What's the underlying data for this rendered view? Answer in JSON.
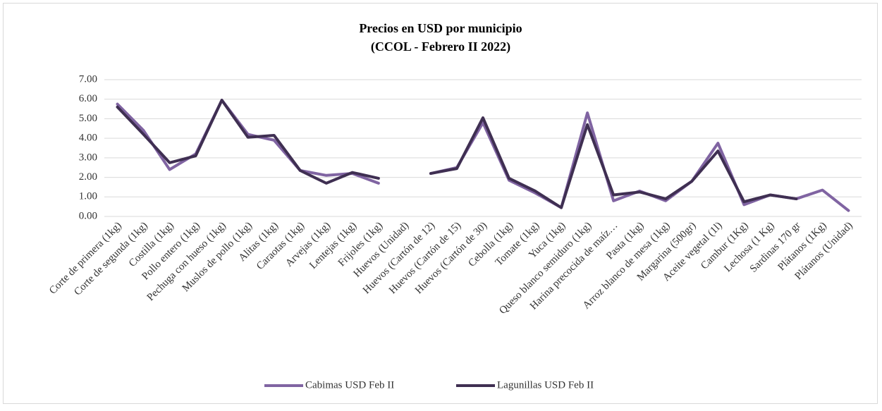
{
  "chart_data": {
    "type": "line",
    "title": "Precios en USD por municipio",
    "subtitle": "(CCOL - Febrero II 2022)",
    "categories": [
      "Corte de primera (1kg)",
      "Corte de segunda (1kg)",
      "Costilla (1kg)",
      "Pollo entero (1kg)",
      "Pechuga con hueso (1kg)",
      "Muslos de pollo (1kg)",
      "Alitas (1kg)",
      "Caraotas (1kg)",
      "Arvejas (1kg)",
      "Lentejas (1kg)",
      "Frijoles (1kg)",
      "Huevos (Unidad)",
      "Huevos (Cartón de 12)",
      "Huevos (Cartón de 15)",
      "Huevos (Cartón de 30)",
      "Cebolla (1kg)",
      "Tomate (1kg)",
      "Yuca (1kg)",
      "Queso blanco semiduro (1kg)",
      "Harina precocida de maíz…",
      "Pasta (1kg)",
      "Arroz blanco de mesa (1kg)",
      "Margarina (500gr)",
      "Aceite vegetal (1l)",
      "Cambur (1Kg)",
      "Lechosa (1 Kg)",
      "Sardinas 170 gr",
      "Plátanos (1Kg)",
      "Plátanos (Unidad)"
    ],
    "series": [
      {
        "name": "Cabimas USD Feb II",
        "color": "#8064a2",
        "values": [
          5.75,
          4.4,
          2.4,
          3.2,
          5.95,
          4.2,
          3.9,
          2.35,
          2.1,
          2.2,
          1.7,
          null,
          2.2,
          2.5,
          4.8,
          1.85,
          1.2,
          0.45,
          5.3,
          0.8,
          1.3,
          0.8,
          1.8,
          3.75,
          0.6,
          1.1,
          0.9,
          1.35,
          0.3
        ]
      },
      {
        "name": "Lagunillas USD Feb II",
        "color": "#3f2f52",
        "values": [
          5.6,
          4.2,
          2.75,
          3.1,
          5.95,
          4.05,
          4.15,
          2.35,
          1.7,
          2.25,
          1.95,
          null,
          2.2,
          2.45,
          5.05,
          1.95,
          1.3,
          0.45,
          4.7,
          1.1,
          1.25,
          0.9,
          1.8,
          3.35,
          0.75,
          1.1,
          0.9,
          null,
          null
        ]
      }
    ],
    "ylim": [
      0,
      7
    ],
    "yticks": [
      {
        "value": 0,
        "label": "0.00"
      },
      {
        "value": 1,
        "label": "1.00"
      },
      {
        "value": 2,
        "label": "2.00"
      },
      {
        "value": 3,
        "label": "3.00"
      },
      {
        "value": 4,
        "label": "4.00"
      },
      {
        "value": 5,
        "label": "5.00"
      },
      {
        "value": 6,
        "label": "6.00"
      },
      {
        "value": 7,
        "label": "7.00"
      }
    ],
    "grid": true,
    "legend": "bottom"
  }
}
